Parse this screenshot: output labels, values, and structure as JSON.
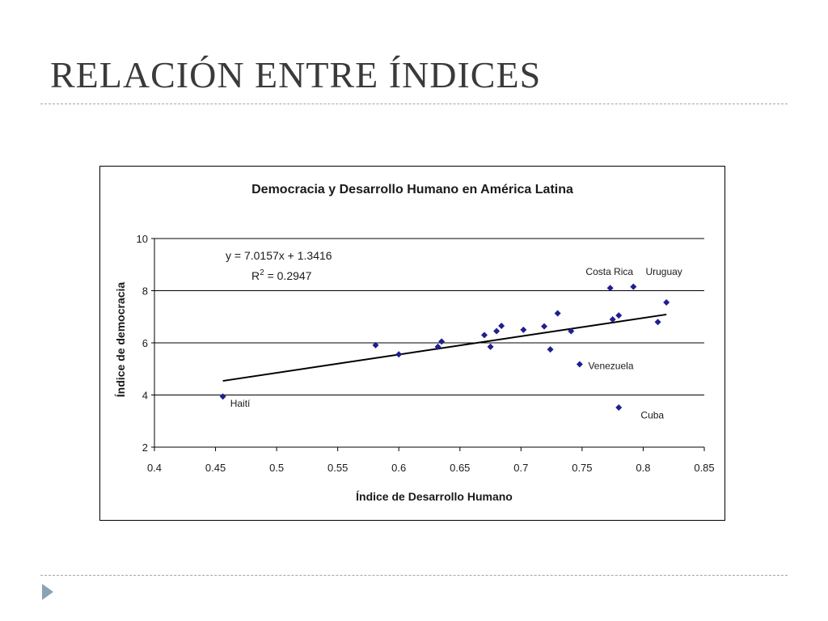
{
  "slide": {
    "title": "RELACIÓN ENTRE ÍNDICES"
  },
  "colors": {
    "title": "#3a3a3a",
    "rule": "#9aa8b4",
    "nav_arrow": "#8aa4b4",
    "marker": "#1f1f8f",
    "trendline": "#000000"
  },
  "chart_data": {
    "type": "scatter",
    "title": "Democracia y Desarrollo Humano en América Latina",
    "xlabel": "Índice de Desarrollo Humano",
    "ylabel": "Índice de democracia",
    "xlim": [
      0.4,
      0.85
    ],
    "ylim": [
      2,
      10
    ],
    "x_ticks": [
      "0.4",
      "0.45",
      "0.5",
      "0.55",
      "0.6",
      "0.65",
      "0.7",
      "0.75",
      "0.8",
      "0.85"
    ],
    "y_ticks": [
      "2",
      "4",
      "6",
      "8",
      "10"
    ],
    "grid": "horizontal",
    "marker": "diamond",
    "points": [
      {
        "x": 0.456,
        "y": 3.94
      },
      {
        "x": 0.581,
        "y": 5.91
      },
      {
        "x": 0.6,
        "y": 5.56
      },
      {
        "x": 0.632,
        "y": 5.85
      },
      {
        "x": 0.635,
        "y": 6.05
      },
      {
        "x": 0.67,
        "y": 6.3
      },
      {
        "x": 0.675,
        "y": 5.85
      },
      {
        "x": 0.68,
        "y": 6.45
      },
      {
        "x": 0.684,
        "y": 6.65
      },
      {
        "x": 0.702,
        "y": 6.5
      },
      {
        "x": 0.719,
        "y": 6.63
      },
      {
        "x": 0.724,
        "y": 5.75
      },
      {
        "x": 0.73,
        "y": 7.13
      },
      {
        "x": 0.741,
        "y": 6.45
      },
      {
        "x": 0.748,
        "y": 5.18
      },
      {
        "x": 0.773,
        "y": 8.1
      },
      {
        "x": 0.775,
        "y": 6.9
      },
      {
        "x": 0.78,
        "y": 7.05
      },
      {
        "x": 0.78,
        "y": 3.52
      },
      {
        "x": 0.792,
        "y": 8.15
      },
      {
        "x": 0.812,
        "y": 6.8
      },
      {
        "x": 0.819,
        "y": 7.55
      }
    ],
    "trendline": {
      "slope": 7.0157,
      "intercept": 1.3416,
      "x_range": [
        0.456,
        0.819
      ]
    },
    "equation": "y = 7.0157x + 1.3416",
    "r_squared_label": "R",
    "r_squared_exp": "2",
    "r_squared_value": " = 0.2947",
    "annotations": [
      {
        "text": "Haití",
        "x": 0.462,
        "y": 3.55
      },
      {
        "text": "Costa Rica",
        "x": 0.753,
        "y": 8.6
      },
      {
        "text": "Uruguay",
        "x": 0.802,
        "y": 8.6
      },
      {
        "text": "Venezuela",
        "x": 0.755,
        "y": 5.0
      },
      {
        "text": "Cuba",
        "x": 0.798,
        "y": 3.1
      }
    ]
  }
}
